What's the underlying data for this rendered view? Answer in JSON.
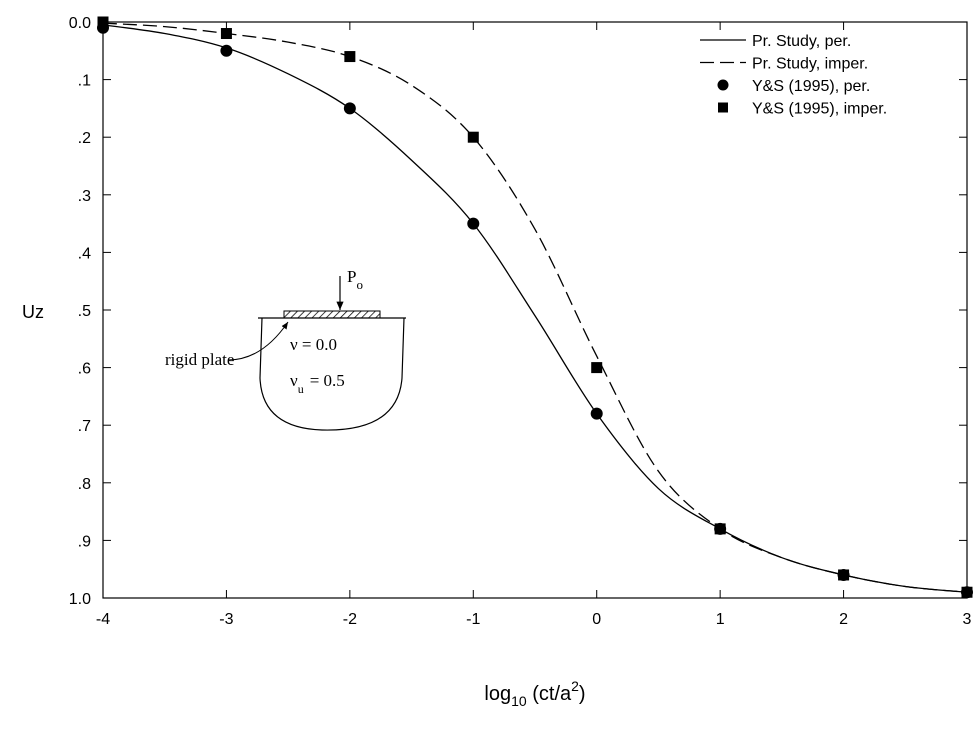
{
  "chart_data": {
    "type": "line",
    "y_label": "Uz",
    "x_label": {
      "base": "log",
      "sub": "10",
      "mid": " (ct/a",
      "sup": "2",
      "end": ")"
    },
    "xlim": [
      -4,
      3
    ],
    "xticks": [
      -4,
      -3,
      -2,
      -1,
      0,
      1,
      2,
      3
    ],
    "ylim": [
      0,
      1
    ],
    "y_inverted": true,
    "yticks": [
      {
        "value": 0,
        "label": "0.0"
      },
      {
        "value": 0.1,
        "label": ".1"
      },
      {
        "value": 0.2,
        "label": ".2"
      },
      {
        "value": 0.3,
        "label": ".3"
      },
      {
        "value": 0.4,
        "label": ".4"
      },
      {
        "value": 0.5,
        "label": ".5"
      },
      {
        "value": 0.6,
        "label": ".6"
      },
      {
        "value": 0.7,
        "label": ".7"
      },
      {
        "value": 0.8,
        "label": ".8"
      },
      {
        "value": 0.9,
        "label": ".9"
      },
      {
        "value": 1,
        "label": "1.0"
      }
    ],
    "legend": "upper right",
    "series": [
      {
        "name": "Pr. Study, per.",
        "kind": "line",
        "style": "solid",
        "color": "#000000",
        "x": [
          -4,
          -3.5,
          -3,
          -2.5,
          -2,
          -1.5,
          -1,
          -0.5,
          0,
          0.5,
          1,
          1.5,
          2,
          2.5,
          3
        ],
        "values": [
          0.005,
          0.02,
          0.045,
          0.09,
          0.15,
          0.24,
          0.35,
          0.51,
          0.68,
          0.81,
          0.88,
          0.93,
          0.96,
          0.98,
          0.99
        ]
      },
      {
        "name": "Pr. Study, imper.",
        "kind": "line",
        "style": "dashed",
        "color": "#000000",
        "x": [
          -4,
          -3.5,
          -3,
          -2.5,
          -2,
          -1.5,
          -1,
          -0.5,
          0,
          0.5,
          1,
          1.5,
          2,
          2.5,
          3
        ],
        "values": [
          0.002,
          0.008,
          0.02,
          0.035,
          0.06,
          0.11,
          0.2,
          0.36,
          0.58,
          0.78,
          0.88,
          0.93,
          0.96,
          0.98,
          0.99
        ]
      },
      {
        "name": "Y&S (1995), per.",
        "kind": "scatter",
        "marker": "circle",
        "color": "#000000",
        "x": [
          -4,
          -3,
          -2,
          -1,
          0,
          1,
          2,
          3
        ],
        "values": [
          0.01,
          0.05,
          0.15,
          0.35,
          0.68,
          0.88,
          0.96,
          0.99
        ]
      },
      {
        "name": "Y&S (1995), imper.",
        "kind": "scatter",
        "marker": "square",
        "color": "#000000",
        "x": [
          -4,
          -3,
          -2,
          -1,
          0,
          1,
          2,
          3
        ],
        "values": [
          0,
          0.02,
          0.06,
          0.2,
          0.6,
          0.88,
          0.96,
          0.99
        ]
      }
    ],
    "inset": {
      "load": "P",
      "load_sub": "o",
      "plate": "rigid plate",
      "nu": "ν = 0.0",
      "nu_u": "ν",
      "nu_u_sub": "u",
      "nu_u_val": "= 0.5"
    }
  }
}
